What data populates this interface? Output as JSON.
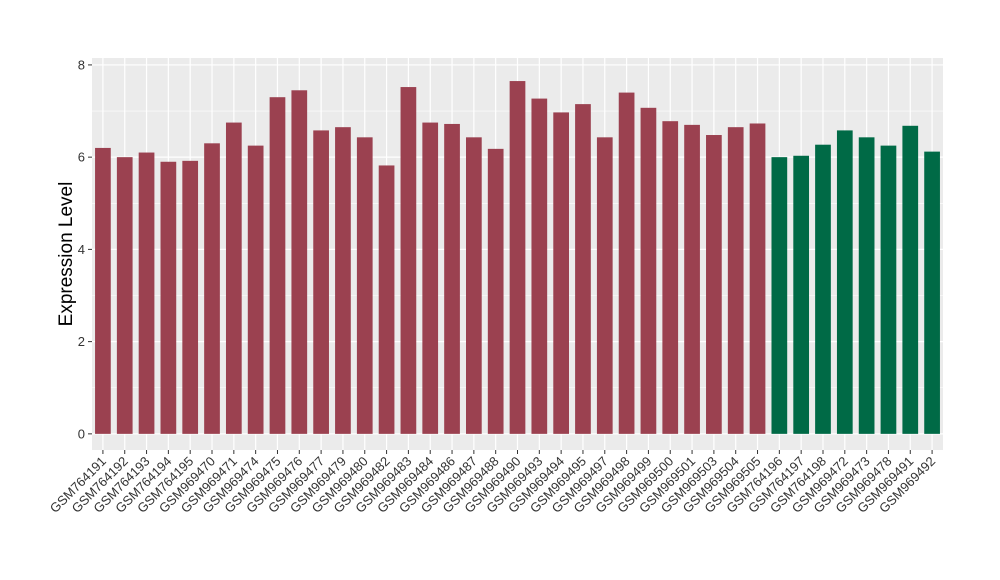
{
  "chart_data": {
    "type": "bar",
    "ylabel": "Expression Level",
    "xlabel": "",
    "ylim": [
      -0.35,
      8.15
    ],
    "yticks": [
      0,
      2,
      4,
      6,
      8
    ],
    "grid": true,
    "colors": {
      "group1": "#9b4150",
      "group2": "#006a46",
      "panel": "#ebebeb",
      "grid": "#ffffff"
    },
    "categories": [
      "GSM764191",
      "GSM764192",
      "GSM764193",
      "GSM764194",
      "GSM764195",
      "GSM969470",
      "GSM969471",
      "GSM969474",
      "GSM969475",
      "GSM969476",
      "GSM969477",
      "GSM969479",
      "GSM969480",
      "GSM969482",
      "GSM969483",
      "GSM969484",
      "GSM969486",
      "GSM969487",
      "GSM969488",
      "GSM969490",
      "GSM969493",
      "GSM969494",
      "GSM969495",
      "GSM969497",
      "GSM969498",
      "GSM969499",
      "GSM969500",
      "GSM969501",
      "GSM969503",
      "GSM969504",
      "GSM969505",
      "GSM764196",
      "GSM764197",
      "GSM764198",
      "GSM969472",
      "GSM969473",
      "GSM969478",
      "GSM969491",
      "GSM969492"
    ],
    "values": [
      6.2,
      6.0,
      6.1,
      5.9,
      5.92,
      6.3,
      6.75,
      6.25,
      7.3,
      7.45,
      6.58,
      6.65,
      6.43,
      5.82,
      7.52,
      6.75,
      6.72,
      6.43,
      6.18,
      7.65,
      7.27,
      6.97,
      7.15,
      6.43,
      7.4,
      7.07,
      6.78,
      6.7,
      6.48,
      6.65,
      6.73,
      6.0,
      6.03,
      6.27,
      6.58,
      6.43,
      6.25,
      6.68,
      6.12
    ],
    "groups": [
      "group1",
      "group1",
      "group1",
      "group1",
      "group1",
      "group1",
      "group1",
      "group1",
      "group1",
      "group1",
      "group1",
      "group1",
      "group1",
      "group1",
      "group1",
      "group1",
      "group1",
      "group1",
      "group1",
      "group1",
      "group1",
      "group1",
      "group1",
      "group1",
      "group1",
      "group1",
      "group1",
      "group1",
      "group1",
      "group1",
      "group1",
      "group2",
      "group2",
      "group2",
      "group2",
      "group2",
      "group2",
      "group2",
      "group2"
    ]
  }
}
